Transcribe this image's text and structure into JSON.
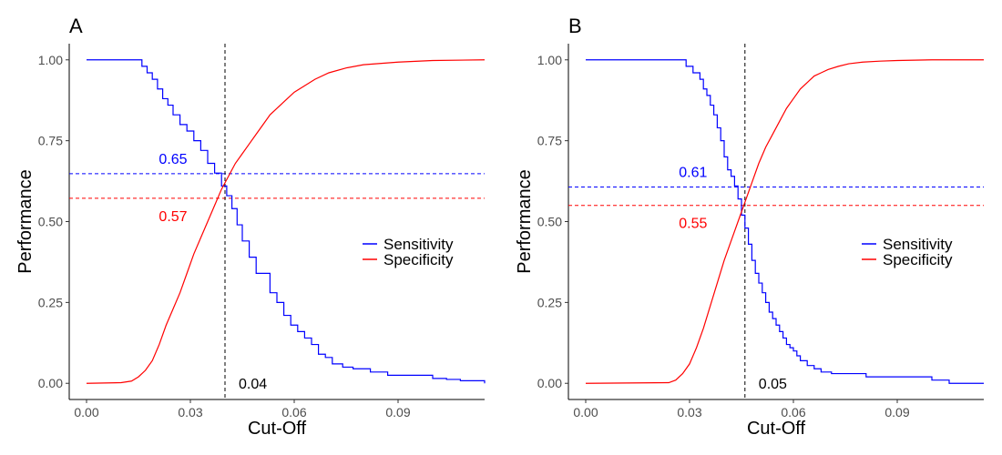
{
  "chart_data": [
    {
      "type": "line",
      "panel_label": "A",
      "xlabel": "Cut-Off",
      "ylabel": "Performance",
      "xlim": [
        -0.005,
        0.115
      ],
      "ylim": [
        -0.05,
        1.05
      ],
      "xticks": [
        {
          "value": 0.0,
          "label": "0.00"
        },
        {
          "value": 0.03,
          "label": "0.03"
        },
        {
          "value": 0.06,
          "label": "0.06"
        },
        {
          "value": 0.09,
          "label": "0.09"
        }
      ],
      "yticks": [
        {
          "value": 0.0,
          "label": "0.00"
        },
        {
          "value": 0.25,
          "label": "0.25"
        },
        {
          "value": 0.5,
          "label": "0.50"
        },
        {
          "value": 0.75,
          "label": "0.75"
        },
        {
          "value": 1.0,
          "label": "1.00"
        }
      ],
      "grid": false,
      "legend_position": "right",
      "series": [
        {
          "name": "Sensitivity",
          "color": "#0000ff",
          "step": true,
          "x": [
            0.0,
            0.016,
            0.0175,
            0.019,
            0.0205,
            0.022,
            0.0235,
            0.025,
            0.027,
            0.029,
            0.031,
            0.033,
            0.035,
            0.037,
            0.039,
            0.0405,
            0.042,
            0.0435,
            0.045,
            0.047,
            0.049,
            0.051,
            0.053,
            0.055,
            0.057,
            0.059,
            0.061,
            0.063,
            0.065,
            0.067,
            0.069,
            0.071,
            0.074,
            0.077,
            0.082,
            0.087,
            0.1,
            0.104,
            0.108,
            0.115
          ],
          "y": [
            1.0,
            0.98,
            0.96,
            0.94,
            0.91,
            0.88,
            0.86,
            0.83,
            0.8,
            0.78,
            0.75,
            0.72,
            0.68,
            0.65,
            0.61,
            0.58,
            0.54,
            0.49,
            0.44,
            0.39,
            0.34,
            0.34,
            0.28,
            0.25,
            0.21,
            0.18,
            0.16,
            0.14,
            0.12,
            0.09,
            0.08,
            0.06,
            0.05,
            0.045,
            0.035,
            0.025,
            0.015,
            0.012,
            0.008,
            0.0
          ]
        },
        {
          "name": "Specificity",
          "color": "#ff0000",
          "step": false,
          "x": [
            0.0,
            0.01,
            0.013,
            0.015,
            0.017,
            0.019,
            0.021,
            0.023,
            0.025,
            0.027,
            0.029,
            0.031,
            0.033,
            0.035,
            0.037,
            0.039,
            0.041,
            0.043,
            0.045,
            0.047,
            0.049,
            0.051,
            0.053,
            0.055,
            0.057,
            0.06,
            0.063,
            0.066,
            0.07,
            0.075,
            0.08,
            0.09,
            0.1,
            0.115
          ],
          "y": [
            0.0,
            0.002,
            0.007,
            0.02,
            0.04,
            0.07,
            0.12,
            0.18,
            0.23,
            0.28,
            0.34,
            0.4,
            0.45,
            0.5,
            0.55,
            0.6,
            0.64,
            0.68,
            0.71,
            0.74,
            0.77,
            0.8,
            0.83,
            0.85,
            0.87,
            0.9,
            0.92,
            0.94,
            0.96,
            0.975,
            0.985,
            0.993,
            0.998,
            1.0
          ]
        }
      ],
      "cutoff": {
        "x": 0.04,
        "label": "0.04"
      },
      "hlines": [
        {
          "series": "Sensitivity",
          "y": 0.648,
          "label": "0.65",
          "color": "#0000ff",
          "label_x": 0.025,
          "label_side": "above"
        },
        {
          "series": "Specificity",
          "y": 0.572,
          "label": "0.57",
          "color": "#ff0000",
          "label_x": 0.025,
          "label_side": "below"
        }
      ]
    },
    {
      "type": "line",
      "panel_label": "B",
      "xlabel": "Cut-Off",
      "ylabel": "Performance",
      "xlim": [
        -0.005,
        0.115
      ],
      "ylim": [
        -0.05,
        1.05
      ],
      "xticks": [
        {
          "value": 0.0,
          "label": "0.00"
        },
        {
          "value": 0.03,
          "label": "0.03"
        },
        {
          "value": 0.06,
          "label": "0.06"
        },
        {
          "value": 0.09,
          "label": "0.09"
        }
      ],
      "yticks": [
        {
          "value": 0.0,
          "label": "0.00"
        },
        {
          "value": 0.25,
          "label": "0.25"
        },
        {
          "value": 0.5,
          "label": "0.50"
        },
        {
          "value": 0.75,
          "label": "0.75"
        },
        {
          "value": 1.0,
          "label": "1.00"
        }
      ],
      "grid": false,
      "legend_position": "right",
      "series": [
        {
          "name": "Sensitivity",
          "color": "#0000ff",
          "step": true,
          "x": [
            0.0,
            0.029,
            0.031,
            0.033,
            0.034,
            0.035,
            0.036,
            0.037,
            0.038,
            0.039,
            0.04,
            0.041,
            0.042,
            0.043,
            0.044,
            0.045,
            0.046,
            0.047,
            0.048,
            0.049,
            0.05,
            0.051,
            0.052,
            0.053,
            0.054,
            0.055,
            0.056,
            0.057,
            0.058,
            0.059,
            0.06,
            0.061,
            0.062,
            0.064,
            0.066,
            0.068,
            0.071,
            0.074,
            0.081,
            0.093,
            0.1,
            0.105,
            0.115
          ],
          "y": [
            1.0,
            0.98,
            0.96,
            0.94,
            0.91,
            0.89,
            0.86,
            0.83,
            0.79,
            0.75,
            0.7,
            0.66,
            0.64,
            0.61,
            0.57,
            0.52,
            0.48,
            0.43,
            0.38,
            0.34,
            0.31,
            0.28,
            0.25,
            0.22,
            0.2,
            0.18,
            0.16,
            0.14,
            0.12,
            0.11,
            0.1,
            0.085,
            0.07,
            0.055,
            0.045,
            0.035,
            0.03,
            0.03,
            0.02,
            0.02,
            0.01,
            0.0,
            0.0
          ]
        },
        {
          "name": "Specificity",
          "color": "#ff0000",
          "step": false,
          "x": [
            0.0,
            0.024,
            0.026,
            0.028,
            0.03,
            0.032,
            0.034,
            0.036,
            0.038,
            0.04,
            0.042,
            0.044,
            0.046,
            0.048,
            0.05,
            0.052,
            0.054,
            0.056,
            0.058,
            0.06,
            0.062,
            0.064,
            0.066,
            0.068,
            0.07,
            0.073,
            0.076,
            0.08,
            0.085,
            0.09,
            0.1,
            0.115
          ],
          "y": [
            0.0,
            0.002,
            0.01,
            0.03,
            0.06,
            0.11,
            0.17,
            0.24,
            0.31,
            0.38,
            0.44,
            0.5,
            0.56,
            0.62,
            0.68,
            0.73,
            0.77,
            0.81,
            0.85,
            0.88,
            0.91,
            0.93,
            0.95,
            0.96,
            0.97,
            0.98,
            0.988,
            0.993,
            0.996,
            0.998,
            1.0,
            1.0
          ]
        }
      ],
      "cutoff": {
        "x": 0.046,
        "label": "0.05"
      },
      "hlines": [
        {
          "series": "Sensitivity",
          "y": 0.607,
          "label": "0.61",
          "color": "#0000ff",
          "label_x": 0.031,
          "label_side": "above"
        },
        {
          "series": "Specificity",
          "y": 0.55,
          "label": "0.55",
          "color": "#ff0000",
          "label_x": 0.031,
          "label_side": "below"
        }
      ]
    }
  ]
}
